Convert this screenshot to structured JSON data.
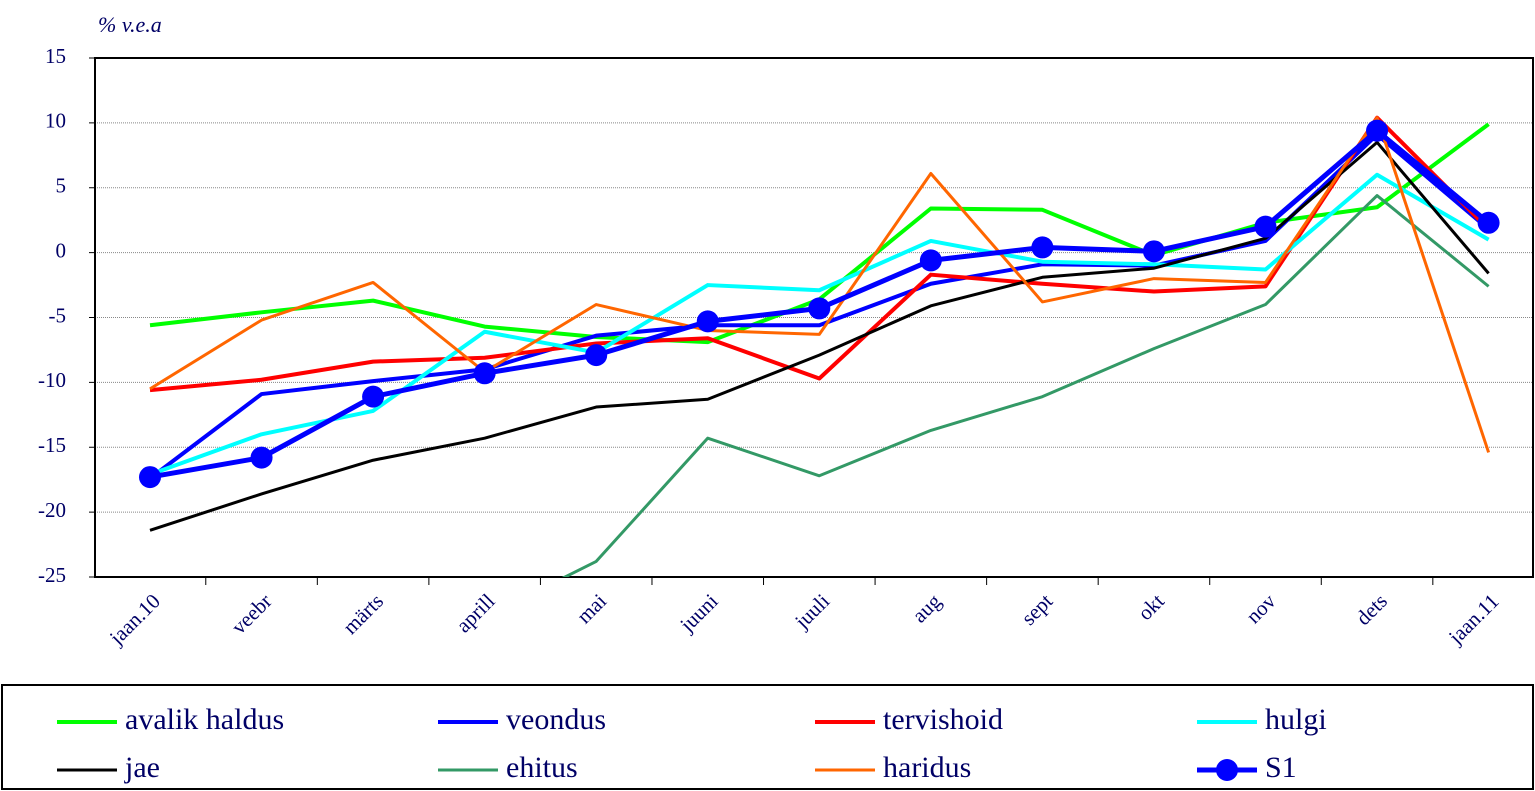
{
  "chart_data": {
    "type": "line",
    "y_axis_label": "% v.e.a",
    "categories": [
      "jaan.10",
      "veebr",
      "märts",
      "aprill",
      "mai",
      "juuni",
      "juuli",
      "aug",
      "sept",
      "okt",
      "nov",
      "dets",
      "jaan.11"
    ],
    "series": [
      {
        "name": "avalik haldus",
        "color": "#00ff00",
        "values": [
          -5.6,
          -4.6,
          -3.7,
          -5.7,
          -6.5,
          -6.9,
          -3.6,
          3.4,
          3.3,
          -0.2,
          2.3,
          3.5,
          9.9
        ]
      },
      {
        "name": "veondus",
        "color": "#0000ff",
        "values": [
          -17.4,
          -10.9,
          -9.9,
          -9.0,
          -6.4,
          -5.6,
          -5.6,
          -2.4,
          -0.9,
          -1.0,
          0.9,
          9.1,
          1.8
        ]
      },
      {
        "name": "tervishoid",
        "color": "#ff0000",
        "values": [
          -10.6,
          -9.8,
          -8.4,
          -8.1,
          -7.0,
          -6.6,
          -9.7,
          -1.7,
          -2.4,
          -3.0,
          -2.6,
          10.4,
          1.8
        ]
      },
      {
        "name": "hulgi",
        "color": "#00ffff",
        "values": [
          -17.1,
          -14.0,
          -12.2,
          -6.1,
          -7.7,
          -2.5,
          -2.9,
          0.9,
          -0.7,
          -0.9,
          -1.3,
          6.0,
          1.0
        ]
      },
      {
        "name": "jae",
        "color": "#000000",
        "values": [
          -21.4,
          -18.6,
          -16.0,
          -14.3,
          -11.9,
          -11.3,
          -7.9,
          -4.1,
          -1.9,
          -1.2,
          1.1,
          8.5,
          -1.6
        ]
      },
      {
        "name": "ehitus",
        "color": "#339966",
        "values": [
          null,
          null,
          null,
          -28.1,
          -23.8,
          -14.3,
          -17.2,
          -13.7,
          -11.1,
          -7.4,
          -4.0,
          4.4,
          -2.6
        ]
      },
      {
        "name": "haridus",
        "color": "#ff6600",
        "values": [
          -10.5,
          -5.2,
          -2.3,
          -9.2,
          -4.0,
          -6.0,
          -6.3,
          6.1,
          -3.8,
          -2.0,
          -2.3,
          10.4,
          -15.4
        ]
      },
      {
        "name": "S1",
        "color": "#0000ff",
        "marker": "circle",
        "values": [
          -17.3,
          -15.8,
          -11.1,
          -9.3,
          -7.9,
          -5.3,
          -4.3,
          -0.6,
          0.4,
          0.1,
          2.0,
          9.4,
          2.3
        ]
      }
    ],
    "ylim": [
      -25,
      15
    ],
    "yticks": [
      -25,
      -20,
      -15,
      -10,
      -5,
      0,
      5,
      10,
      15
    ],
    "grid": true
  }
}
